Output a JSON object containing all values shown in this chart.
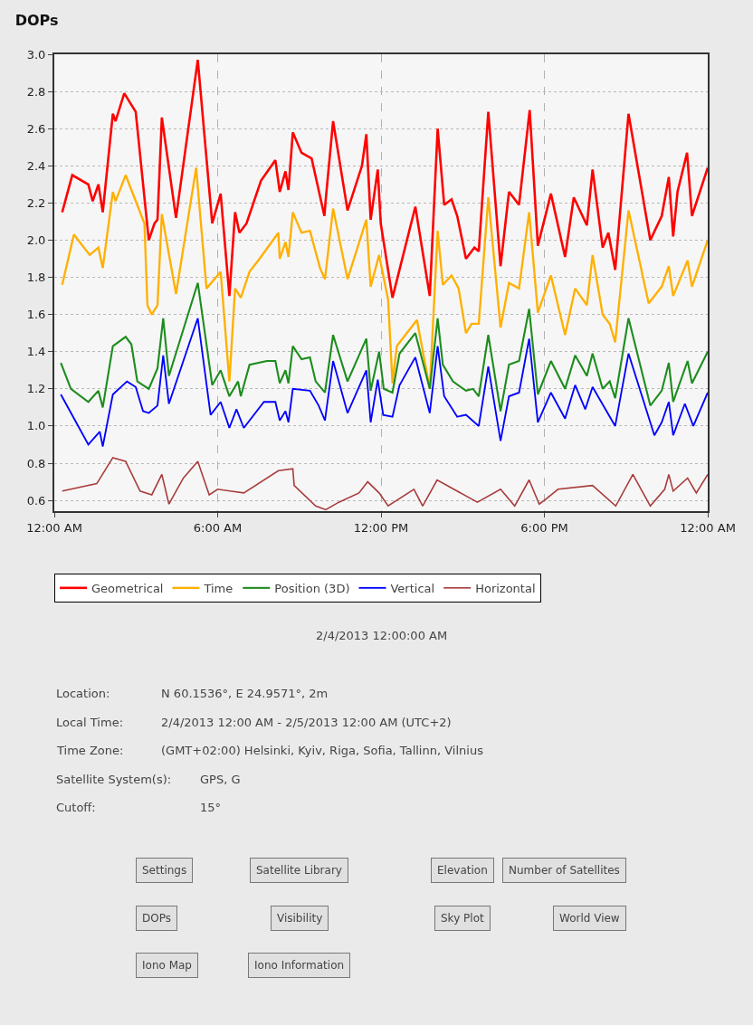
{
  "chart_data": {
    "type": "line",
    "title": "DOPs",
    "xlim": [
      0,
      24
    ],
    "ylim": [
      0.54,
      3.0
    ],
    "xticks": [
      {
        "value": 0,
        "label": "12:00 AM"
      },
      {
        "value": 6,
        "label": "6:00 AM"
      },
      {
        "value": 12,
        "label": "12:00 PM"
      },
      {
        "value": 18,
        "label": "6:00 PM"
      },
      {
        "value": 24,
        "label": "12:00 AM"
      }
    ],
    "yticks": [
      0.6,
      0.8,
      {
        "value": 1,
        "label": "1.0"
      },
      1.2,
      1.4,
      1.6,
      1.8,
      {
        "value": 2,
        "label": "2.0"
      },
      2.2,
      2.4,
      2.6,
      2.8,
      {
        "value": 3,
        "label": "3.0"
      }
    ],
    "grid": true,
    "legend": "bottom",
    "marker": "none",
    "line_style": "solid",
    "series": [
      {
        "name": "Geometrical",
        "color": "#ff0000",
        "x": [
          0.29,
          0.66,
          1.25,
          1.41,
          1.62,
          1.78,
          2.15,
          2.25,
          2.57,
          2.99,
          3.47,
          3.68,
          3.79,
          3.95,
          4.47,
          5.27,
          5.8,
          6.11,
          6.43,
          6.64,
          6.8,
          7.06,
          7.59,
          8.12,
          8.28,
          8.49,
          8.6,
          8.76,
          9.08,
          9.45,
          9.92,
          9.97,
          10.24,
          10.77,
          11.3,
          11.46,
          11.62,
          11.88,
          11.99,
          12.42,
          13.26,
          13.79,
          14.08,
          14.32,
          14.59,
          14.8,
          15.12,
          15.43,
          15.59,
          15.94,
          16.39,
          16.7,
          17.07,
          17.46,
          17.76,
          18.24,
          18.76,
          19.08,
          19.56,
          19.77,
          20.14,
          20.35,
          20.6,
          21.09,
          21.89,
          22.31,
          22.57,
          22.73,
          22.89,
          23.24,
          23.42,
          24.0
        ],
        "values": [
          2.15,
          2.35,
          2.3,
          2.21,
          2.3,
          2.15,
          2.68,
          2.64,
          2.79,
          2.69,
          2.0,
          2.09,
          2.11,
          2.66,
          2.12,
          2.97,
          2.09,
          2.25,
          1.7,
          2.15,
          2.04,
          2.09,
          2.32,
          2.43,
          2.26,
          2.37,
          2.27,
          2.58,
          2.47,
          2.44,
          2.13,
          2.22,
          2.64,
          2.16,
          2.4,
          2.57,
          2.11,
          2.38,
          2.09,
          1.69,
          2.18,
          1.7,
          2.6,
          2.19,
          2.22,
          2.13,
          1.9,
          1.96,
          1.94,
          2.69,
          1.86,
          2.26,
          2.19,
          2.7,
          1.97,
          2.25,
          1.91,
          2.23,
          2.08,
          2.38,
          1.96,
          2.04,
          1.84,
          2.68,
          2.0,
          2.13,
          2.34,
          2.02,
          2.26,
          2.47,
          2.13,
          2.39
        ]
      },
      {
        "name": "Time",
        "color": "#ffb000",
        "x": [
          0.29,
          0.72,
          1.3,
          1.62,
          1.78,
          2.15,
          2.25,
          2.62,
          3.31,
          3.42,
          3.58,
          3.79,
          3.95,
          4.47,
          5.21,
          5.59,
          6.11,
          6.43,
          6.64,
          6.85,
          7.17,
          7.54,
          8.23,
          8.28,
          8.49,
          8.6,
          8.76,
          9.08,
          9.39,
          9.76,
          9.94,
          10.24,
          10.77,
          11.46,
          11.62,
          11.93,
          12.26,
          12.42,
          12.58,
          13.32,
          13.79,
          14.08,
          14.27,
          14.59,
          14.85,
          15.12,
          15.33,
          15.59,
          15.94,
          16.39,
          16.7,
          17.07,
          17.44,
          17.76,
          18.24,
          18.76,
          19.13,
          19.56,
          19.77,
          20.14,
          20.4,
          20.6,
          21.09,
          21.83,
          22.31,
          22.57,
          22.73,
          23.26,
          23.42,
          24.0
        ],
        "values": [
          1.76,
          2.03,
          1.92,
          1.96,
          1.85,
          2.26,
          2.21,
          2.35,
          2.09,
          1.65,
          1.6,
          1.65,
          2.14,
          1.71,
          2.39,
          1.74,
          1.83,
          1.24,
          1.74,
          1.69,
          1.83,
          1.9,
          2.04,
          1.9,
          1.99,
          1.91,
          2.15,
          2.04,
          2.05,
          1.85,
          1.79,
          2.17,
          1.79,
          2.11,
          1.75,
          1.92,
          1.68,
          1.23,
          1.43,
          1.57,
          1.2,
          2.05,
          1.76,
          1.81,
          1.74,
          1.5,
          1.55,
          1.55,
          2.23,
          1.53,
          1.77,
          1.74,
          2.15,
          1.61,
          1.81,
          1.49,
          1.74,
          1.65,
          1.92,
          1.6,
          1.55,
          1.45,
          2.16,
          1.66,
          1.75,
          1.86,
          1.7,
          1.89,
          1.75,
          2.0
        ]
      },
      {
        "name": "Position (3D)",
        "color": "#1e8c1e",
        "x": [
          0.24,
          0.61,
          1.25,
          1.62,
          1.78,
          2.15,
          2.62,
          2.83,
          3.05,
          3.47,
          3.79,
          4.0,
          4.21,
          5.27,
          5.8,
          6.11,
          6.43,
          6.75,
          6.85,
          7.17,
          7.81,
          8.12,
          8.28,
          8.49,
          8.6,
          8.76,
          9.08,
          9.39,
          9.6,
          9.94,
          10.24,
          10.77,
          11.46,
          11.62,
          11.93,
          12.1,
          12.42,
          12.68,
          13.26,
          13.79,
          14.08,
          14.27,
          14.64,
          15.12,
          15.38,
          15.59,
          15.94,
          16.39,
          16.7,
          17.07,
          17.44,
          17.76,
          18.24,
          18.76,
          19.13,
          19.56,
          19.77,
          20.14,
          20.4,
          20.6,
          21.09,
          21.89,
          22.31,
          22.57,
          22.73,
          23.26,
          23.42,
          24.0
        ],
        "values": [
          1.34,
          1.2,
          1.13,
          1.19,
          1.1,
          1.43,
          1.48,
          1.44,
          1.24,
          1.2,
          1.31,
          1.58,
          1.27,
          1.77,
          1.22,
          1.3,
          1.16,
          1.24,
          1.16,
          1.33,
          1.35,
          1.35,
          1.23,
          1.3,
          1.23,
          1.43,
          1.36,
          1.37,
          1.24,
          1.18,
          1.49,
          1.24,
          1.47,
          1.19,
          1.4,
          1.2,
          1.18,
          1.39,
          1.5,
          1.2,
          1.58,
          1.33,
          1.24,
          1.19,
          1.2,
          1.16,
          1.49,
          1.08,
          1.33,
          1.35,
          1.63,
          1.17,
          1.35,
          1.2,
          1.38,
          1.27,
          1.39,
          1.2,
          1.24,
          1.15,
          1.58,
          1.11,
          1.19,
          1.34,
          1.13,
          1.35,
          1.23,
          1.4
        ]
      },
      {
        "name": "Vertical",
        "color": "#0000ff",
        "x": [
          0.24,
          1.25,
          1.67,
          1.78,
          2.15,
          2.67,
          2.99,
          3.26,
          3.47,
          3.79,
          4.0,
          4.21,
          5.27,
          5.74,
          6.11,
          6.43,
          6.69,
          6.96,
          7.7,
          8.12,
          8.28,
          8.49,
          8.6,
          8.76,
          9.39,
          9.71,
          9.94,
          10.24,
          10.77,
          11.46,
          11.62,
          11.88,
          12.08,
          12.42,
          12.68,
          13.26,
          13.79,
          14.08,
          14.32,
          14.8,
          15.12,
          15.59,
          15.94,
          16.39,
          16.7,
          17.07,
          17.44,
          17.76,
          18.24,
          18.76,
          19.13,
          19.5,
          19.77,
          20.6,
          21.09,
          22.04,
          22.31,
          22.57,
          22.73,
          23.16,
          23.47,
          24.0
        ],
        "values": [
          1.17,
          0.9,
          0.97,
          0.89,
          1.17,
          1.24,
          1.21,
          1.08,
          1.07,
          1.11,
          1.38,
          1.12,
          1.58,
          1.06,
          1.13,
          0.99,
          1.09,
          0.99,
          1.13,
          1.13,
          1.03,
          1.08,
          1.02,
          1.2,
          1.19,
          1.11,
          1.03,
          1.35,
          1.07,
          1.3,
          1.02,
          1.25,
          1.06,
          1.05,
          1.22,
          1.37,
          1.07,
          1.43,
          1.16,
          1.05,
          1.06,
          1.0,
          1.32,
          0.92,
          1.16,
          1.18,
          1.47,
          1.02,
          1.18,
          1.04,
          1.22,
          1.09,
          1.21,
          1.0,
          1.39,
          0.95,
          1.02,
          1.13,
          0.95,
          1.12,
          1.0,
          1.18
        ]
      },
      {
        "name": "Horizontal",
        "color": "#a83c3c",
        "x": [
          0.29,
          1.56,
          2.15,
          2.62,
          3.15,
          3.58,
          3.95,
          4.21,
          4.74,
          5.27,
          5.69,
          6.0,
          6.96,
          8.23,
          8.76,
          8.81,
          9.6,
          9.97,
          10.45,
          11.19,
          11.51,
          11.93,
          12.26,
          13.21,
          13.53,
          14.06,
          15.54,
          16.39,
          16.91,
          17.44,
          17.81,
          18.08,
          18.5,
          19.77,
          20.62,
          21.25,
          21.89,
          22.42,
          22.57,
          22.73,
          23.26,
          23.58,
          24.0
        ],
        "values": [
          0.65,
          0.69,
          0.83,
          0.81,
          0.65,
          0.63,
          0.74,
          0.58,
          0.72,
          0.81,
          0.63,
          0.66,
          0.64,
          0.76,
          0.77,
          0.68,
          0.57,
          0.55,
          0.59,
          0.64,
          0.7,
          0.64,
          0.57,
          0.66,
          0.57,
          0.71,
          0.59,
          0.66,
          0.57,
          0.71,
          0.58,
          0.61,
          0.66,
          0.68,
          0.57,
          0.74,
          0.57,
          0.66,
          0.74,
          0.65,
          0.72,
          0.64,
          0.74
        ]
      }
    ],
    "annotations": [
      "2/4/2013 12:00:00 AM",
      "Location:",
      "N 60.1536°, E 24.9571°, 2m",
      "Local Time:",
      "2/4/2013 12:00 AM - 2/5/2013 12:00 AM (UTC+2)",
      "Time Zone:",
      "(GMT+02:00) Helsinki, Kyiv, Riga, Sofia, Tallinn, Vilnius",
      "Satellite System(s):",
      "GPS, G",
      "Cutoff:",
      "15°",
      "Settings",
      "Satellite Library",
      "Elevation",
      "Number of Satellites",
      "DOPs",
      "Visibility",
      "Sky Plot",
      "World View",
      "Iono Map",
      "Iono Information"
    ]
  }
}
